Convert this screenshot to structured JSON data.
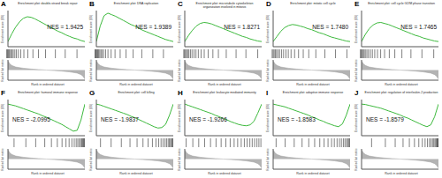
{
  "chart_data": [
    {
      "type": "line",
      "panel": "A",
      "title": "Enrichment plot: double-strand break repair",
      "annotation": "NES = 1.9425",
      "x_label": "Rank in ordered dataset",
      "y_label": "Enrichment score (ES)",
      "color": "#3cb93c",
      "grid": false,
      "tick_labels": false,
      "x": [
        0,
        1000,
        2000,
        3000,
        4000,
        5000,
        6000,
        7000,
        8000,
        9000,
        10000,
        11000,
        12000,
        13000,
        14000,
        15000,
        16000,
        17000,
        18000,
        19000,
        20000
      ],
      "values": [
        0,
        0.15,
        0.28,
        0.38,
        0.45,
        0.48,
        0.47,
        0.44,
        0.4,
        0.36,
        0.32,
        0.28,
        0.24,
        0.2,
        0.17,
        0.13,
        0.1,
        0.07,
        0.05,
        0.02,
        0
      ],
      "hits": [
        150,
        300,
        500,
        700,
        900,
        1200,
        1500,
        1800,
        2200,
        2600,
        3100,
        3700,
        4500,
        5500,
        6800,
        8200,
        10000,
        12500,
        15000,
        18000
      ],
      "xlim": [
        0,
        20000
      ],
      "xticks": [
        0,
        5000,
        10000,
        15000,
        20000
      ],
      "ylim": [
        -0.1,
        0.6
      ],
      "yticks": [
        -0.1,
        0,
        0.1,
        0.2,
        0.3,
        0.4,
        0.5,
        0.6
      ]
    },
    {
      "type": "line",
      "panel": "B",
      "title": "Enrichment plot: DNA replication",
      "annotation": "NES = 1.9389",
      "x_label": "Rank in ordered dataset",
      "y_label": "Enrichment score (ES)",
      "color": "#3cb93c",
      "grid": false,
      "tick_labels": false,
      "x": [
        0,
        1000,
        2000,
        3000,
        4000,
        5000,
        6000,
        7000,
        8000,
        9000,
        10000,
        11000,
        12000,
        13000,
        14000,
        15000,
        16000,
        17000,
        18000,
        19000,
        20000
      ],
      "values": [
        0,
        0.3,
        0.5,
        0.55,
        0.52,
        0.49,
        0.45,
        0.41,
        0.37,
        0.33,
        0.3,
        0.26,
        0.22,
        0.19,
        0.16,
        0.13,
        0.1,
        0.07,
        0.04,
        0.02,
        0
      ],
      "hits": [
        100,
        250,
        400,
        600,
        800,
        1000,
        1300,
        1600,
        1900,
        2300,
        2800,
        3400,
        4200,
        5200,
        6500,
        8000,
        9800,
        12000,
        14800,
        17500
      ],
      "xlim": [
        0,
        20000
      ],
      "xticks": [
        0,
        5000,
        10000,
        15000,
        20000
      ],
      "ylim": [
        -0.1,
        0.6
      ],
      "yticks": [
        -0.1,
        0,
        0.1,
        0.2,
        0.3,
        0.4,
        0.5,
        0.6
      ]
    },
    {
      "type": "line",
      "panel": "C",
      "title": "Enrichment plot: microtubule cytoskeleton organization involved in mitosis",
      "annotation": "NES = 1.8271",
      "x_label": "Rank in ordered dataset",
      "y_label": "Enrichment score (ES)",
      "color": "#3cb93c",
      "grid": false,
      "tick_labels": false,
      "x": [
        0,
        1000,
        2000,
        3000,
        4000,
        5000,
        6000,
        7000,
        8000,
        9000,
        10000,
        11000,
        12000,
        13000,
        14000,
        15000,
        16000,
        17000,
        18000,
        19000,
        20000
      ],
      "values": [
        0,
        0.12,
        0.22,
        0.3,
        0.35,
        0.37,
        0.36,
        0.34,
        0.31,
        0.28,
        0.25,
        0.22,
        0.19,
        0.16,
        0.13,
        0.1,
        0.08,
        0.05,
        0.03,
        0.01,
        0
      ],
      "hits": [
        200,
        400,
        650,
        900,
        1200,
        1500,
        1900,
        2300,
        2800,
        3300,
        3900,
        4600,
        5400,
        6400,
        7600,
        9000,
        11000,
        13500,
        16000,
        19000
      ],
      "xlim": [
        0,
        20000
      ],
      "xticks": [
        0,
        5000,
        10000,
        15000,
        20000
      ],
      "ylim": [
        -0.1,
        0.6
      ],
      "yticks": [
        -0.1,
        0,
        0.1,
        0.2,
        0.3,
        0.4,
        0.5,
        0.6
      ]
    },
    {
      "type": "line",
      "panel": "D",
      "title": "Enrichment plot: mitotic cell cycle",
      "annotation": "NES = 1.7480",
      "x_label": "Rank in ordered dataset",
      "y_label": "Enrichment score (ES)",
      "color": "#3cb93c",
      "grid": false,
      "tick_labels": false,
      "x": [
        0,
        1000,
        2000,
        3000,
        4000,
        5000,
        6000,
        7000,
        8000,
        9000,
        10000,
        11000,
        12000,
        13000,
        14000,
        15000,
        16000,
        17000,
        18000,
        19000,
        20000
      ],
      "values": [
        0,
        0.1,
        0.2,
        0.27,
        0.31,
        0.33,
        0.32,
        0.3,
        0.28,
        0.25,
        0.23,
        0.2,
        0.17,
        0.15,
        0.12,
        0.09,
        0.07,
        0.05,
        0.03,
        0.01,
        0
      ],
      "hits": [
        200,
        450,
        700,
        1000,
        1300,
        1700,
        2100,
        2600,
        3100,
        3700,
        4300,
        5000,
        5900,
        6900,
        8100,
        9500,
        11300,
        13600,
        16300,
        19200
      ],
      "xlim": [
        0,
        20000
      ],
      "xticks": [
        0,
        5000,
        10000,
        15000,
        20000
      ],
      "ylim": [
        -0.1,
        0.6
      ],
      "yticks": [
        -0.1,
        0,
        0.1,
        0.2,
        0.3,
        0.4,
        0.5,
        0.6
      ]
    },
    {
      "type": "line",
      "panel": "E",
      "title": "Enrichment plot: cell cycle G2/M phase transition",
      "annotation": "NES = 1.7465",
      "x_label": "Rank in ordered dataset",
      "y_label": "Enrichment score (ES)",
      "color": "#3cb93c",
      "grid": false,
      "tick_labels": false,
      "x": [
        0,
        1000,
        2000,
        3000,
        4000,
        5000,
        6000,
        7000,
        8000,
        9000,
        10000,
        11000,
        12000,
        13000,
        14000,
        15000,
        16000,
        17000,
        18000,
        19000,
        20000
      ],
      "values": [
        0,
        0.14,
        0.25,
        0.32,
        0.36,
        0.37,
        0.35,
        0.33,
        0.3,
        0.27,
        0.24,
        0.21,
        0.18,
        0.15,
        0.12,
        0.1,
        0.07,
        0.05,
        0.03,
        0.01,
        0
      ],
      "hits": [
        150,
        350,
        600,
        850,
        1100,
        1400,
        1800,
        2200,
        2700,
        3200,
        3800,
        4500,
        5300,
        6300,
        7500,
        8900,
        10700,
        13000,
        15800,
        18800
      ],
      "xlim": [
        0,
        20000
      ],
      "xticks": [
        0,
        5000,
        10000,
        15000,
        20000
      ],
      "ylim": [
        -0.1,
        0.6
      ],
      "yticks": [
        -0.1,
        0,
        0.1,
        0.2,
        0.3,
        0.4,
        0.5,
        0.6
      ]
    },
    {
      "type": "line",
      "panel": "F",
      "title": "Enrichment plot: humoral immune response",
      "annotation": "NES = -2.0995",
      "x_label": "Rank in ordered dataset",
      "y_label": "Enrichment score (ES)",
      "color": "#3cb93c",
      "grid": false,
      "tick_labels": false,
      "x": [
        0,
        1000,
        2000,
        3000,
        4000,
        5000,
        6000,
        7000,
        8000,
        9000,
        10000,
        11000,
        12000,
        13000,
        14000,
        15000,
        16000,
        17000,
        18000,
        19000,
        20000
      ],
      "values": [
        0,
        -0.02,
        -0.04,
        -0.07,
        -0.1,
        -0.13,
        -0.16,
        -0.19,
        -0.22,
        -0.26,
        -0.29,
        -0.33,
        -0.37,
        -0.41,
        -0.45,
        -0.5,
        -0.55,
        -0.6,
        -0.58,
        -0.35,
        0
      ],
      "hits": [
        2000,
        5000,
        7500,
        9800,
        11500,
        13000,
        14200,
        15200,
        16000,
        16700,
        17300,
        17800,
        18200,
        18600,
        18900,
        19200,
        19400,
        19600,
        19750,
        19900
      ],
      "xlim": [
        0,
        20000
      ],
      "xticks": [
        0,
        5000,
        10000,
        15000,
        20000
      ],
      "ylim": [
        -0.7,
        0.1
      ],
      "yticks": [
        -0.7,
        -0.6,
        -0.5,
        -0.4,
        -0.3,
        -0.2,
        -0.1,
        0,
        0.1
      ]
    },
    {
      "type": "line",
      "panel": "G",
      "title": "Enrichment plot: cell killing",
      "annotation": "NES = -1.9837",
      "x_label": "Rank in ordered dataset",
      "y_label": "Enrichment score (ES)",
      "color": "#3cb93c",
      "grid": false,
      "tick_labels": false,
      "x": [
        0,
        1000,
        2000,
        3000,
        4000,
        5000,
        6000,
        7000,
        8000,
        9000,
        10000,
        11000,
        12000,
        13000,
        14000,
        15000,
        16000,
        17000,
        18000,
        19000,
        20000
      ],
      "values": [
        0,
        -0.02,
        -0.05,
        -0.08,
        -0.11,
        -0.14,
        -0.17,
        -0.2,
        -0.23,
        -0.27,
        -0.3,
        -0.34,
        -0.38,
        -0.42,
        -0.46,
        -0.5,
        -0.53,
        -0.52,
        -0.45,
        -0.25,
        0
      ],
      "hits": [
        1500,
        4200,
        6800,
        9000,
        10800,
        12300,
        13600,
        14700,
        15600,
        16300,
        16900,
        17400,
        17900,
        18300,
        18700,
        19000,
        19300,
        19550,
        19750,
        19900
      ],
      "xlim": [
        0,
        20000
      ],
      "xticks": [
        0,
        5000,
        10000,
        15000,
        20000
      ],
      "ylim": [
        -0.7,
        0.1
      ],
      "yticks": [
        -0.7,
        -0.6,
        -0.5,
        -0.4,
        -0.3,
        -0.2,
        -0.1,
        0,
        0.1
      ]
    },
    {
      "type": "line",
      "panel": "H",
      "title": "Enrichment plot: leukocyte mediated immunity",
      "annotation": "NES = -1.9266",
      "x_label": "Rank in ordered dataset",
      "y_label": "Enrichment score (ES)",
      "color": "#3cb93c",
      "grid": false,
      "tick_labels": false,
      "x": [
        0,
        1000,
        2000,
        3000,
        4000,
        5000,
        6000,
        7000,
        8000,
        9000,
        10000,
        11000,
        12000,
        13000,
        14000,
        15000,
        16000,
        17000,
        18000,
        19000,
        20000
      ],
      "values": [
        0,
        -0.03,
        -0.06,
        -0.09,
        -0.12,
        -0.15,
        -0.18,
        -0.21,
        -0.25,
        -0.28,
        -0.32,
        -0.35,
        -0.39,
        -0.42,
        -0.45,
        -0.47,
        -0.48,
        -0.46,
        -0.38,
        -0.2,
        0
      ],
      "hits": [
        800,
        2500,
        4000,
        5500,
        7000,
        8400,
        9700,
        10900,
        12000,
        13000,
        13900,
        14800,
        15600,
        16300,
        17000,
        17600,
        18200,
        18800,
        19300,
        19800
      ],
      "xlim": [
        0,
        20000
      ],
      "xticks": [
        0,
        5000,
        10000,
        15000,
        20000
      ],
      "ylim": [
        -0.7,
        0.1
      ],
      "yticks": [
        -0.7,
        -0.6,
        -0.5,
        -0.4,
        -0.3,
        -0.2,
        -0.1,
        0,
        0.1
      ]
    },
    {
      "type": "line",
      "panel": "I",
      "title": "Enrichment plot: adaptive immune response",
      "annotation": "NES = -1.8583",
      "x_label": "Rank in ordered dataset",
      "y_label": "Enrichment score (ES)",
      "color": "#3cb93c",
      "grid": false,
      "tick_labels": false,
      "x": [
        0,
        1000,
        2000,
        3000,
        4000,
        5000,
        6000,
        7000,
        8000,
        9000,
        10000,
        11000,
        12000,
        13000,
        14000,
        15000,
        16000,
        17000,
        18000,
        19000,
        20000
      ],
      "values": [
        0,
        -0.02,
        -0.04,
        -0.06,
        -0.09,
        -0.12,
        -0.15,
        -0.18,
        -0.21,
        -0.24,
        -0.28,
        -0.31,
        -0.35,
        -0.38,
        -0.42,
        -0.45,
        -0.48,
        -0.5,
        -0.44,
        -0.25,
        0
      ],
      "hits": [
        1200,
        3500,
        5800,
        7800,
        9500,
        11000,
        12300,
        13400,
        14400,
        15300,
        16000,
        16700,
        17300,
        17800,
        18300,
        18700,
        19100,
        19400,
        19700,
        19900
      ],
      "xlim": [
        0,
        20000
      ],
      "xticks": [
        0,
        5000,
        10000,
        15000,
        20000
      ],
      "ylim": [
        -0.7,
        0.1
      ],
      "yticks": [
        -0.7,
        -0.6,
        -0.5,
        -0.4,
        -0.3,
        -0.2,
        -0.1,
        0,
        0.1
      ]
    },
    {
      "type": "line",
      "panel": "J",
      "title": "Enrichment plot: regulation of interleukin-2 production",
      "annotation": "NES = -1.8579",
      "x_label": "Rank in ordered dataset",
      "y_label": "Enrichment score (ES)",
      "color": "#3cb93c",
      "grid": false,
      "tick_labels": false,
      "x": [
        0,
        1000,
        2000,
        3000,
        4000,
        5000,
        6000,
        7000,
        8000,
        9000,
        10000,
        11000,
        12000,
        13000,
        14000,
        15000,
        16000,
        17000,
        18000,
        19000,
        20000
      ],
      "values": [
        0,
        -0.01,
        -0.03,
        -0.05,
        -0.07,
        -0.09,
        -0.12,
        -0.15,
        -0.18,
        -0.21,
        -0.24,
        -0.28,
        -0.31,
        -0.35,
        -0.39,
        -0.43,
        -0.47,
        -0.5,
        -0.46,
        -0.28,
        0
      ],
      "hits": [
        3000,
        6500,
        9000,
        11000,
        12600,
        13900,
        15000,
        15900,
        16600,
        17200,
        17700,
        18100,
        18500,
        18800,
        19100,
        19350,
        19550,
        19700,
        19850,
        19950
      ],
      "xlim": [
        0,
        20000
      ],
      "xticks": [
        0,
        5000,
        10000,
        15000,
        20000
      ],
      "ylim": [
        -0.7,
        0.1
      ],
      "yticks": [
        -0.7,
        -0.6,
        -0.5,
        -0.4,
        -0.3,
        -0.2,
        -0.1,
        0,
        0.1
      ]
    }
  ],
  "ranked_list_metric": {
    "label": "Ranked list metric",
    "color": "#a0a0a0",
    "x": [
      0,
      500,
      1000,
      2000,
      4000,
      6000,
      8000,
      10000,
      12000,
      14000,
      16000,
      18000,
      19000,
      19500,
      20000
    ],
    "values": [
      0.9,
      0.6,
      0.45,
      0.3,
      0.18,
      0.1,
      0.05,
      0,
      -0.05,
      -0.1,
      -0.18,
      -0.3,
      -0.45,
      -0.6,
      -0.9
    ],
    "ylim": [
      -1,
      1
    ],
    "yticks": [
      -1,
      0,
      1
    ]
  }
}
